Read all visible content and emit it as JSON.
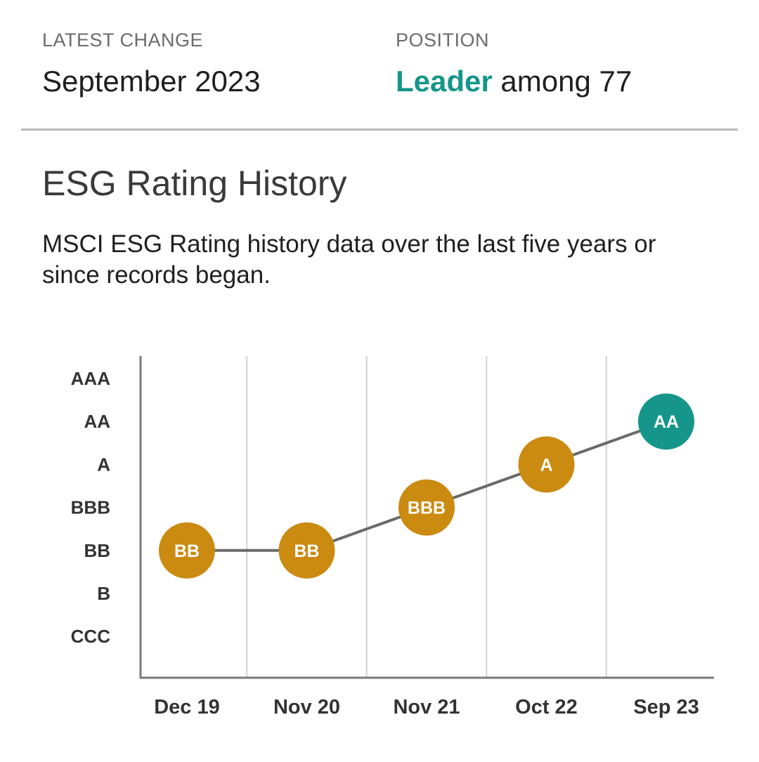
{
  "header": {
    "latest_change_label": "LATEST CHANGE",
    "latest_change_value": "September 2023",
    "position_label": "POSITION",
    "position_highlight": "Leader",
    "position_rest": " among 77"
  },
  "section": {
    "title": "ESG Rating History",
    "description": "MSCI ESG Rating history data over the last five years or since records began."
  },
  "colors": {
    "accent": "#16968a",
    "rating_marker": "#cb8a10",
    "latest_marker": "#16968a",
    "line": "#6a6a6a",
    "axis": "#7a7a7a",
    "grid": "#d2d2d2",
    "tick_text": "#333333"
  },
  "chart_data": {
    "type": "line",
    "title": "",
    "xlabel": "",
    "ylabel": "",
    "y_categories": [
      "CCC",
      "B",
      "BB",
      "BBB",
      "A",
      "AA",
      "AAA"
    ],
    "categories": [
      "Dec 19",
      "Nov 20",
      "Nov 21",
      "Oct 22",
      "Sep 23"
    ],
    "values": [
      "BB",
      "BB",
      "BBB",
      "A",
      "AA"
    ],
    "grid": "vertical",
    "legend": "none"
  }
}
